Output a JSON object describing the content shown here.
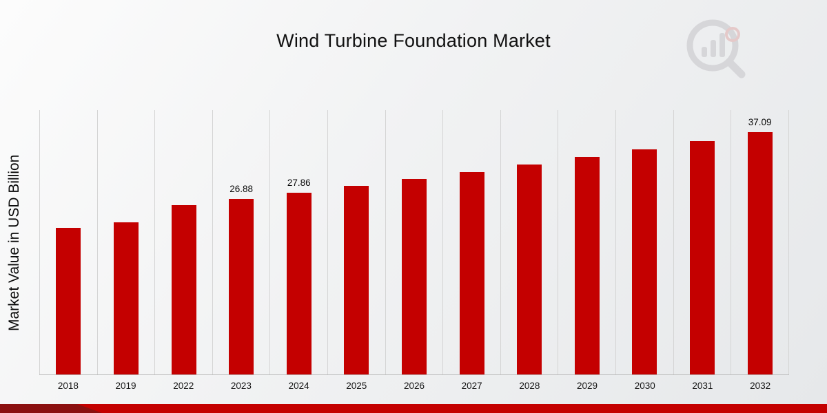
{
  "title": "Wind Turbine Foundation Market",
  "ylabel": "Market Value in USD Billion",
  "branding": {
    "logo_icon": "bar-chart-magnifier-logo"
  },
  "colors": {
    "bar": "#C40000",
    "bottom_band": "#C40000",
    "bottom_band_dark": "#8B1010",
    "gridline": "#d4d4d4"
  },
  "chart_data": {
    "type": "bar",
    "title": "Wind Turbine Foundation Market",
    "xlabel": "",
    "ylabel": "Market Value in USD Billion",
    "categories": [
      "2018",
      "2019",
      "2022",
      "2023",
      "2024",
      "2025",
      "2026",
      "2027",
      "2028",
      "2029",
      "2030",
      "2031",
      "2032"
    ],
    "values": [
      22.5,
      23.3,
      25.94,
      26.88,
      27.86,
      28.88,
      29.93,
      31.02,
      32.15,
      33.32,
      34.53,
      35.79,
      37.09
    ],
    "labels": {
      "2023": "26.88",
      "2024": "27.86",
      "2032": "37.09"
    },
    "ylim": [
      0,
      40.5
    ],
    "grid": "vertical",
    "legend": "none",
    "bar_color": "#C40000",
    "unit": "USD Billion"
  }
}
